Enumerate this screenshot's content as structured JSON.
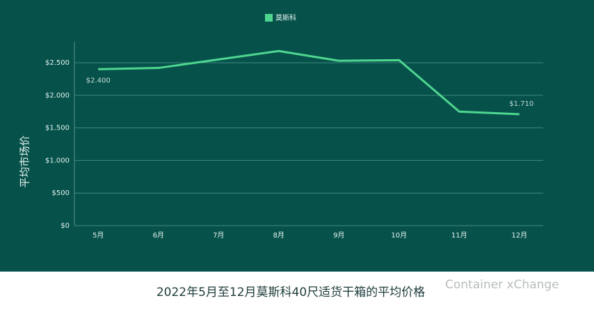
{
  "chart_data": {
    "type": "line",
    "categories": [
      "5月",
      "6月",
      "7月",
      "8月",
      "9月",
      "10月",
      "11月",
      "12月"
    ],
    "series": [
      {
        "name": "莫斯科",
        "color": "#4fd68f",
        "values": [
          2400,
          2420,
          2550,
          2680,
          2530,
          2540,
          1750,
          1710
        ],
        "value_labels": [
          "$2.400",
          null,
          null,
          null,
          null,
          null,
          null,
          "$1.710"
        ]
      }
    ],
    "y_label": "平均市场价",
    "ylim": [
      0,
      2800
    ],
    "yticks": [
      {
        "value": 0,
        "label": "$0"
      },
      {
        "value": 500,
        "label": "$500"
      },
      {
        "value": 1000,
        "label": "$1.000"
      },
      {
        "value": 1500,
        "label": "$1.500"
      },
      {
        "value": 2000,
        "label": "$2.000"
      },
      {
        "value": 2500,
        "label": "$2.500"
      }
    ],
    "grid": true,
    "legend": "top",
    "caption": "2022年5月至12月莫斯科40尺适货干箱的平均价格",
    "watermark": "Container xChange"
  }
}
